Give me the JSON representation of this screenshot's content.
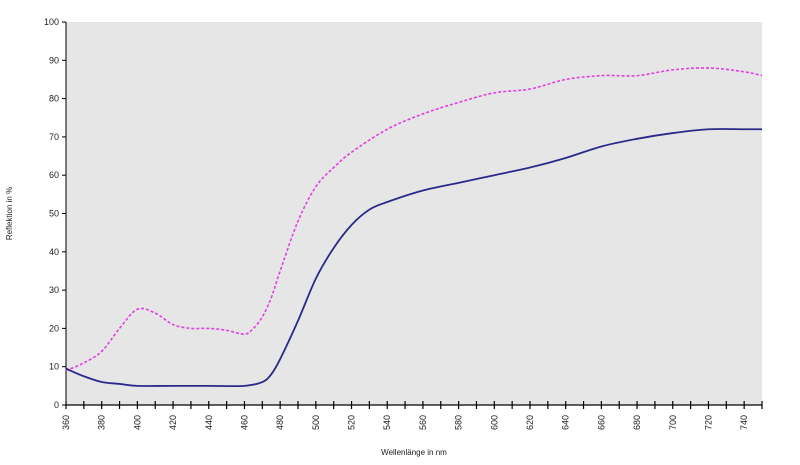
{
  "chart_data": {
    "type": "line",
    "title": "",
    "xlabel": "Wellenlänge  in nm",
    "ylabel": "Reflektion  in %",
    "xlim": [
      360,
      750
    ],
    "ylim": [
      0,
      100
    ],
    "x_ticks": [
      360,
      380,
      400,
      420,
      440,
      460,
      480,
      500,
      520,
      540,
      560,
      580,
      600,
      620,
      640,
      660,
      680,
      700,
      720,
      740
    ],
    "y_ticks": [
      0,
      10,
      20,
      30,
      40,
      50,
      60,
      70,
      80,
      90,
      100
    ],
    "grid": false,
    "legend": "none",
    "plot_background": "#e6e6e6",
    "series": [
      {
        "style": "dashed",
        "color": "#e040e0",
        "x": [
          360,
          370,
          380,
          390,
          400,
          410,
          420,
          430,
          440,
          450,
          460,
          465,
          470,
          475,
          480,
          490,
          500,
          510,
          520,
          540,
          560,
          580,
          600,
          620,
          640,
          660,
          680,
          700,
          720,
          740,
          750
        ],
        "y": [
          9,
          11,
          14,
          20,
          25,
          24,
          21,
          20,
          20,
          19.5,
          18.5,
          20,
          23,
          28,
          35,
          48,
          57,
          62,
          66,
          72,
          76,
          79,
          81.5,
          82.5,
          85,
          86,
          86,
          87.5,
          88,
          87,
          86
        ]
      },
      {
        "style": "solid",
        "color": "#2a2a8a",
        "x": [
          360,
          370,
          380,
          390,
          400,
          420,
          440,
          460,
          470,
          475,
          480,
          490,
          500,
          510,
          520,
          530,
          540,
          560,
          580,
          600,
          620,
          640,
          660,
          680,
          700,
          720,
          740,
          750
        ],
        "y": [
          9.5,
          7.5,
          6,
          5.5,
          5,
          5,
          5,
          5,
          6,
          8,
          12,
          22,
          33,
          41,
          47,
          51,
          53,
          56,
          58,
          60,
          62,
          64.5,
          67.5,
          69.5,
          71,
          72,
          72,
          72
        ]
      }
    ]
  }
}
